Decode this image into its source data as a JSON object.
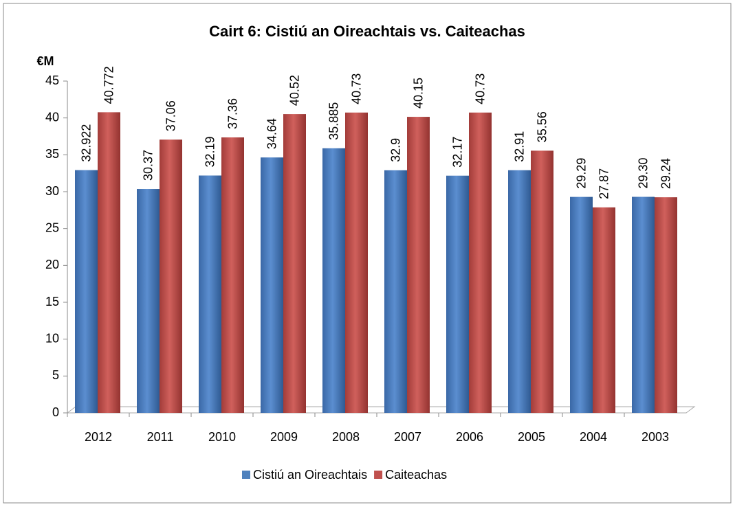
{
  "chart_data": {
    "type": "bar",
    "title": "Cairt 6: Cistiú an Oireachtais vs. Caiteachas",
    "y_label": "€M",
    "categories": [
      "2012",
      "2011",
      "2010",
      "2009",
      "2008",
      "2007",
      "2006",
      "2005",
      "2004",
      "2003"
    ],
    "series": [
      {
        "name": "Cistiú an Oireachtais",
        "color": "#4f81bd",
        "values": [
          32.922,
          30.37,
          32.19,
          34.64,
          35.885,
          32.9,
          32.17,
          32.91,
          29.29,
          29.3
        ],
        "value_labels": [
          "32.922",
          "30.37",
          "32.19",
          "34.64",
          "35.885",
          "32.9",
          "32.17",
          "32.91",
          "29.29",
          "29.30"
        ]
      },
      {
        "name": "Caiteachas",
        "color": "#c0504d",
        "values": [
          40.772,
          37.06,
          37.36,
          40.52,
          40.73,
          40.15,
          40.73,
          35.56,
          27.87,
          29.24
        ]
      }
    ],
    "ylim": [
      0,
      45
    ],
    "yticks": [
      0,
      5,
      10,
      15,
      20,
      25,
      30,
      35,
      40,
      45
    ]
  }
}
